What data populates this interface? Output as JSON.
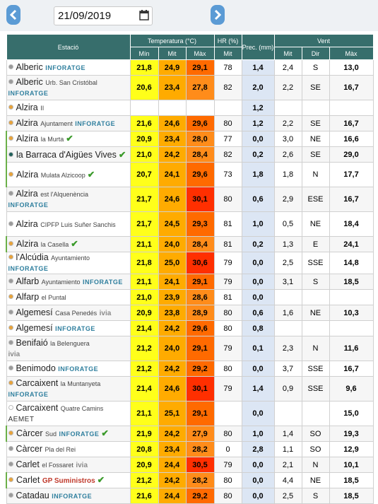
{
  "date": "21/09/2019",
  "table": {
    "headers": {
      "station": "Estació",
      "temperature": "Temperatura (°C)",
      "humidity": "HR (%)",
      "precipitation": "Prec. (mm)",
      "wind": "Vent"
    },
    "subheaders": {
      "temp_min": "Mín",
      "temp_avg": "Mit",
      "temp_max": "Màx",
      "hr_avg": "Mit",
      "wind_avg": "Mit",
      "wind_dir": "Dir",
      "wind_max": "Màx"
    },
    "rows": [
      {
        "name": "Alberic",
        "sub": null,
        "tag": "INFORATGE",
        "check": false,
        "dot": "#9a9a9a",
        "cells": [
          "21,8",
          "24,9",
          "29,1",
          "78",
          "1,4",
          "2,4",
          "S",
          "13,0"
        ]
      },
      {
        "name": "Alberic",
        "sub": "Urb. San Cristóbal",
        "tag": "INFORATGE",
        "check": false,
        "dot": "#9a9a9a",
        "cells": [
          "20,6",
          "23,4",
          "27,8",
          "82",
          "2,0",
          "2,2",
          "SE",
          "16,7"
        ]
      },
      {
        "name": "Alzira",
        "sub": "II",
        "tag": null,
        "check": false,
        "dot": "#e8a33a",
        "cells": [
          null,
          null,
          null,
          null,
          "1,2",
          null,
          null,
          null
        ]
      },
      {
        "name": "Alzira",
        "sub": "Ajuntament",
        "tag": "INFORATGE",
        "check": false,
        "dot": "#e8a33a",
        "cells": [
          "21,6",
          "24,6",
          "29,6",
          "80",
          "1,2",
          "2,2",
          "SE",
          "16,7"
        ]
      },
      {
        "name": "Alzira",
        "sub": "la Murta",
        "tag": null,
        "check": true,
        "dot": "#e8a33a",
        "cells": [
          "20,9",
          "23,4",
          "28,0",
          "77",
          "0,0",
          "3,0",
          "NE",
          "16,6"
        ]
      },
      {
        "name": "la Barraca d'Aigües Vives",
        "sub": null,
        "tag": null,
        "check": true,
        "dot": "#1f5f5a",
        "cells": [
          "21,0",
          "24,2",
          "28,4",
          "82",
          "0,2",
          "2,6",
          "SE",
          "29,0"
        ]
      },
      {
        "name": "Alzira",
        "sub": "Mulata Alzicoop",
        "tag": null,
        "check": true,
        "dot": "#e8a33a",
        "cells": [
          "20,7",
          "24,1",
          "29,6",
          "73",
          "1,8",
          "1,8",
          "N",
          "17,7"
        ]
      },
      {
        "name": "Alzira",
        "sub": "est l'Alquenència",
        "tag": "INFORATGE",
        "check": false,
        "dot": "#9a9a9a",
        "cells": [
          "21,7",
          "24,6",
          "30,1",
          "80",
          "0,6",
          "2,9",
          "ESE",
          "16,7"
        ]
      },
      {
        "name": "Alzira",
        "sub": "CIPFP Luis Suñer Sanchis",
        "tag": null,
        "check": false,
        "dot": "#9a9a9a",
        "cells": [
          "21,7",
          "24,5",
          "29,3",
          "81",
          "1,0",
          "0,5",
          "NE",
          "18,4"
        ]
      },
      {
        "name": "Alzira",
        "sub": "la Casella",
        "tag": null,
        "check": true,
        "dot": "#e8a33a",
        "cells": [
          "21,1",
          "24,0",
          "28,4",
          "81",
          "0,2",
          "1,3",
          "E",
          "24,1"
        ]
      },
      {
        "name": "l'Alcúdia",
        "sub": "Ayuntamiento",
        "tag": "INFORATGE",
        "check": false,
        "dot": "#e8a33a",
        "cells": [
          "21,8",
          "25,0",
          "30,6",
          "79",
          "0,0",
          "2,5",
          "SSE",
          "14,8"
        ]
      },
      {
        "name": "Alfarb",
        "sub": "Ayuntamiento",
        "tag": "INFORATGE",
        "check": false,
        "dot": "#9a9a9a",
        "cells": [
          "21,1",
          "24,1",
          "29,1",
          "79",
          "0,0",
          "3,1",
          "S",
          "18,5"
        ]
      },
      {
        "name": "Alfarp",
        "sub": "el Puntal",
        "tag": null,
        "check": false,
        "dot": "#e8a33a",
        "cells": [
          "21,0",
          "23,9",
          "28,6",
          "81",
          "0,0",
          null,
          null,
          null
        ]
      },
      {
        "name": "Algemesí",
        "sub": "Casa Penedés",
        "tag": "ivia",
        "check": false,
        "dot": "#9a9a9a",
        "cells": [
          "20,9",
          "23,8",
          "28,9",
          "80",
          "0,6",
          "1,6",
          "NE",
          "10,3"
        ]
      },
      {
        "name": "Algemesí",
        "sub": null,
        "tag": "INFORATGE",
        "check": false,
        "dot": "#e8a33a",
        "cells": [
          "21,4",
          "24,2",
          "29,6",
          "80",
          "0,8",
          null,
          null,
          null
        ]
      },
      {
        "name": "Benifaió",
        "sub": "la Belenguera",
        "tag": "ivia",
        "check": false,
        "dot": "#9a9a9a",
        "cells": [
          "21,2",
          "24,0",
          "29,1",
          "79",
          "0,1",
          "2,3",
          "N",
          "11,6"
        ]
      },
      {
        "name": "Benimodo",
        "sub": null,
        "tag": "INFORATGE",
        "check": false,
        "dot": "#9a9a9a",
        "cells": [
          "21,2",
          "24,2",
          "29,2",
          "80",
          "0,0",
          "3,7",
          "SSE",
          "16,7"
        ]
      },
      {
        "name": "Carcaixent",
        "sub": "la Muntanyeta",
        "tag": "INFORATGE",
        "check": false,
        "dot": "#e8a33a",
        "cells": [
          "21,4",
          "24,6",
          "30,1",
          "79",
          "1,4",
          "0,9",
          "SSE",
          "9,6"
        ]
      },
      {
        "name": "Carcaixent",
        "sub": "Quatre Camins",
        "tag": "AEMET",
        "check": false,
        "dot": "#ffffff",
        "cells": [
          "21,1",
          "25,1",
          "29,1",
          null,
          "0,0",
          null,
          null,
          "15,0"
        ]
      },
      {
        "name": "Càrcer",
        "sub": "Sud",
        "tag": "INFORATGE",
        "check": true,
        "dot": "#e8a33a",
        "cells": [
          "21,9",
          "24,2",
          "27,9",
          "80",
          "1,0",
          "1,4",
          "SO",
          "19,3"
        ]
      },
      {
        "name": "Càrcer",
        "sub": "Pla del Rei",
        "tag": null,
        "check": false,
        "dot": "#9a9a9a",
        "cells": [
          "20,8",
          "23,4",
          "28,2",
          "0",
          "2,8",
          "1,1",
          "SO",
          "12,9"
        ]
      },
      {
        "name": "Carlet",
        "sub": "el Fossaret",
        "tag": "ivia",
        "check": false,
        "dot": "#9a9a9a",
        "cells": [
          "20,9",
          "24,4",
          "30,5",
          "79",
          "0,0",
          "2,1",
          "N",
          "10,1"
        ]
      },
      {
        "name": "Carlet",
        "sub": null,
        "tag": "GP Suministros",
        "check": true,
        "dot": "#e8a33a",
        "cells": [
          "21,2",
          "24,2",
          "28,2",
          "80",
          "0,0",
          "4,4",
          "NE",
          "18,5"
        ]
      },
      {
        "name": "Catadau",
        "sub": null,
        "tag": "INFORATGE",
        "check": false,
        "dot": "#9a9a9a",
        "cells": [
          "21,6",
          "24,4",
          "29,2",
          "80",
          "0,0",
          "2,5",
          "S",
          "18,5"
        ]
      }
    ]
  }
}
